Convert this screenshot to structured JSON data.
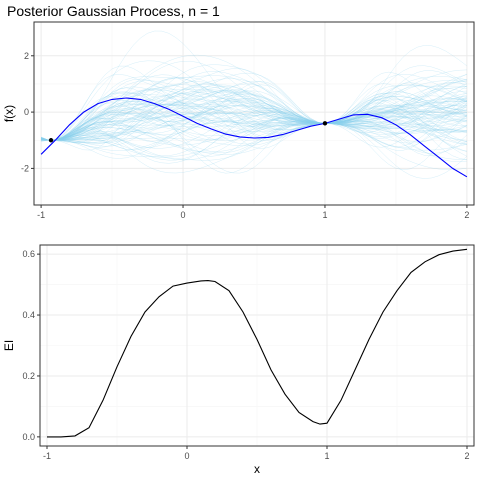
{
  "colors": {
    "mean_line": "#0000ff",
    "sample_paths": "#87ceeb",
    "points": "#000000",
    "ei_line": "#000000",
    "grid": "#ebebeb",
    "border": "#333333"
  },
  "chart_data": [
    {
      "type": "line",
      "title": "Posterior Gaussian Process, n =  1",
      "xlabel": "",
      "ylabel": "f(x)",
      "xlim": [
        -1.05,
        2.05
      ],
      "ylim": [
        -3.3,
        3.2
      ],
      "x_ticks": [
        -1,
        0,
        1,
        2
      ],
      "y_ticks": [
        -2,
        0,
        2
      ],
      "x_tick_labels": [
        "-1",
        "0",
        "1",
        "2"
      ],
      "y_tick_labels": [
        "-2",
        "0",
        "2"
      ],
      "grid": true,
      "posterior_mean": {
        "x": [
          -1.0,
          -0.9,
          -0.8,
          -0.7,
          -0.6,
          -0.5,
          -0.4,
          -0.3,
          -0.2,
          -0.1,
          0.0,
          0.1,
          0.2,
          0.3,
          0.4,
          0.5,
          0.6,
          0.7,
          0.8,
          0.9,
          1.0,
          1.1,
          1.2,
          1.3,
          1.4,
          1.5,
          1.6,
          1.7,
          1.8,
          1.9,
          2.0
        ],
        "y": [
          -1.5,
          -1.0,
          -0.45,
          0.0,
          0.3,
          0.45,
          0.5,
          0.45,
          0.3,
          0.1,
          -0.15,
          -0.4,
          -0.6,
          -0.78,
          -0.88,
          -0.92,
          -0.9,
          -0.8,
          -0.65,
          -0.5,
          -0.4,
          -0.25,
          -0.1,
          -0.08,
          -0.2,
          -0.45,
          -0.8,
          -1.2,
          -1.6,
          -2.0,
          -2.3
        ]
      },
      "observations": [
        {
          "x": -0.93,
          "y": -1.0
        },
        {
          "x": 1.0,
          "y": -0.4
        }
      ],
      "sample_paths_count": 100
    },
    {
      "type": "line",
      "title": "",
      "xlabel": "x",
      "ylabel": "EI",
      "xlim": [
        -1.05,
        2.05
      ],
      "ylim": [
        -0.03,
        0.63
      ],
      "x_ticks": [
        -1,
        0,
        1,
        2
      ],
      "y_ticks": [
        0.0,
        0.2,
        0.4,
        0.6
      ],
      "x_tick_labels": [
        "-1",
        "0",
        "1",
        "2"
      ],
      "y_tick_labels": [
        "0.0",
        "0.2",
        "0.4",
        "0.6"
      ],
      "grid": true,
      "series": [
        {
          "x": [
            -1.0,
            -0.9,
            -0.8,
            -0.7,
            -0.6,
            -0.5,
            -0.4,
            -0.3,
            -0.2,
            -0.1,
            0.0,
            0.1,
            0.15,
            0.2,
            0.3,
            0.4,
            0.5,
            0.6,
            0.7,
            0.8,
            0.9,
            0.95,
            1.0,
            1.1,
            1.2,
            1.3,
            1.4,
            1.5,
            1.6,
            1.7,
            1.8,
            1.9,
            2.0
          ],
          "y": [
            0.0,
            0.0,
            0.003,
            0.03,
            0.12,
            0.23,
            0.33,
            0.41,
            0.46,
            0.495,
            0.505,
            0.512,
            0.513,
            0.51,
            0.48,
            0.41,
            0.32,
            0.22,
            0.14,
            0.08,
            0.05,
            0.042,
            0.045,
            0.12,
            0.22,
            0.32,
            0.41,
            0.48,
            0.54,
            0.575,
            0.598,
            0.61,
            0.616
          ]
        }
      ]
    }
  ]
}
